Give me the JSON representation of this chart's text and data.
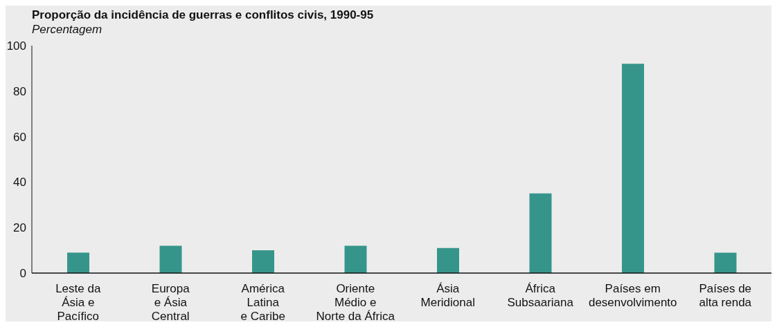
{
  "chart_data": {
    "type": "bar",
    "title": "Proporção da incidência de guerras e conflitos civis, 1990-95",
    "subtitle": "Percentagem",
    "categories": [
      "Leste da\nÁsia e\nPacífico",
      "Europa\ne Ásia\nCentral",
      "América\nLatina\ne Caribe",
      "Oriente\nMédio e\nNorte da África",
      "Ásia\nMeridional",
      "África\nSubsaariana",
      "Países em\ndesenvolvimento",
      "Países de\nalta renda"
    ],
    "values": [
      9,
      12,
      10,
      12,
      11,
      35,
      92,
      9
    ],
    "color": "#36958b",
    "ylim": [
      0,
      100
    ],
    "yticks": [
      0,
      20,
      40,
      60,
      80,
      100
    ],
    "grid": false,
    "legend": false
  }
}
